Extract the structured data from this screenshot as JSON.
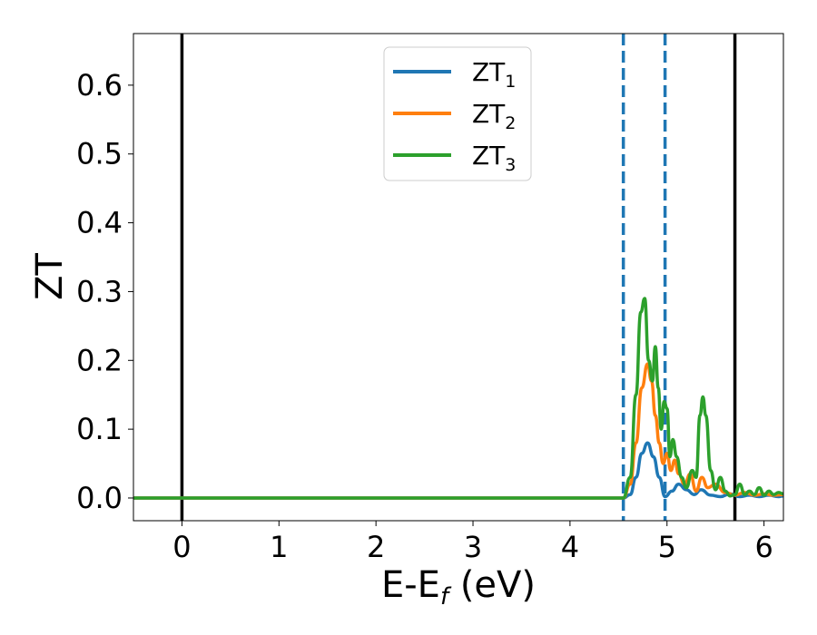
{
  "chart_data": {
    "type": "line",
    "title": "",
    "xlabel": "E-E",
    "xlabel_sub": "f",
    "xlabel_unit": " (eV)",
    "ylabel": "ZT",
    "xlim": [
      -0.5,
      6.2
    ],
    "ylim": [
      -0.033,
      0.675
    ],
    "xticks": [
      0,
      1,
      2,
      3,
      4,
      5,
      6
    ],
    "xtick_labels": [
      "0",
      "1",
      "2",
      "3",
      "4",
      "5",
      "6"
    ],
    "yticks": [
      0.0,
      0.1,
      0.2,
      0.3,
      0.4,
      0.5,
      0.6
    ],
    "ytick_labels": [
      "0.0",
      "0.1",
      "0.2",
      "0.3",
      "0.4",
      "0.5",
      "0.6"
    ],
    "grid": false,
    "legend_position": "top-center",
    "vlines": [
      {
        "x": 0.0,
        "style": "solid",
        "color": "#000000"
      },
      {
        "x": 5.7,
        "style": "solid",
        "color": "#000000"
      },
      {
        "x": 4.55,
        "style": "dashed",
        "color": "#1f77b4"
      },
      {
        "x": 4.98,
        "style": "dashed",
        "color": "#1f77b4"
      }
    ],
    "series": [
      {
        "name": "ZT",
        "name_sub": "1",
        "color": "#1f77b4",
        "x": [
          -0.5,
          4.55,
          4.62,
          4.68,
          4.74,
          4.8,
          4.86,
          4.92,
          4.98,
          5.05,
          5.12,
          5.2,
          5.28,
          5.35,
          5.45,
          5.55,
          5.65,
          5.75,
          5.85,
          5.95,
          6.05,
          6.15,
          6.2
        ],
        "y": [
          0.0,
          0.0,
          0.005,
          0.03,
          0.065,
          0.08,
          0.06,
          0.03,
          0.002,
          0.01,
          0.02,
          0.012,
          0.005,
          0.012,
          0.004,
          0.002,
          0.006,
          0.002,
          0.004,
          0.002,
          0.004,
          0.002,
          0.003
        ]
      },
      {
        "name": "ZT",
        "name_sub": "2",
        "color": "#ff7f0e",
        "x": [
          -0.5,
          4.55,
          4.62,
          4.68,
          4.74,
          4.8,
          4.84,
          4.88,
          4.92,
          4.96,
          5.0,
          5.04,
          5.08,
          5.12,
          5.18,
          5.24,
          5.3,
          5.36,
          5.42,
          5.5,
          5.6,
          5.7,
          5.8,
          5.9,
          6.0,
          6.1,
          6.2
        ],
        "y": [
          0.0,
          0.0,
          0.02,
          0.08,
          0.16,
          0.195,
          0.17,
          0.12,
          0.08,
          0.05,
          0.065,
          0.04,
          0.055,
          0.035,
          0.02,
          0.035,
          0.01,
          0.03,
          0.015,
          0.02,
          0.008,
          0.004,
          0.008,
          0.004,
          0.006,
          0.004,
          0.005
        ]
      },
      {
        "name": "ZT",
        "name_sub": "3",
        "color": "#2ca02c",
        "x": [
          -0.5,
          4.55,
          4.62,
          4.68,
          4.73,
          4.77,
          4.81,
          4.85,
          4.88,
          4.91,
          4.94,
          4.97,
          5.0,
          5.03,
          5.06,
          5.1,
          5.15,
          5.2,
          5.26,
          5.3,
          5.34,
          5.37,
          5.4,
          5.45,
          5.5,
          5.55,
          5.6,
          5.65,
          5.7,
          5.75,
          5.8,
          5.85,
          5.9,
          5.95,
          6.0,
          6.05,
          6.1,
          6.15,
          6.2
        ],
        "y": [
          0.0,
          0.0,
          0.03,
          0.15,
          0.27,
          0.29,
          0.2,
          0.17,
          0.22,
          0.16,
          0.1,
          0.14,
          0.13,
          0.06,
          0.085,
          0.06,
          0.03,
          0.015,
          0.04,
          0.03,
          0.12,
          0.147,
          0.12,
          0.04,
          0.012,
          0.03,
          0.01,
          0.003,
          0.005,
          0.02,
          0.005,
          0.01,
          0.005,
          0.015,
          0.004,
          0.01,
          0.005,
          0.008,
          0.006
        ]
      }
    ]
  }
}
